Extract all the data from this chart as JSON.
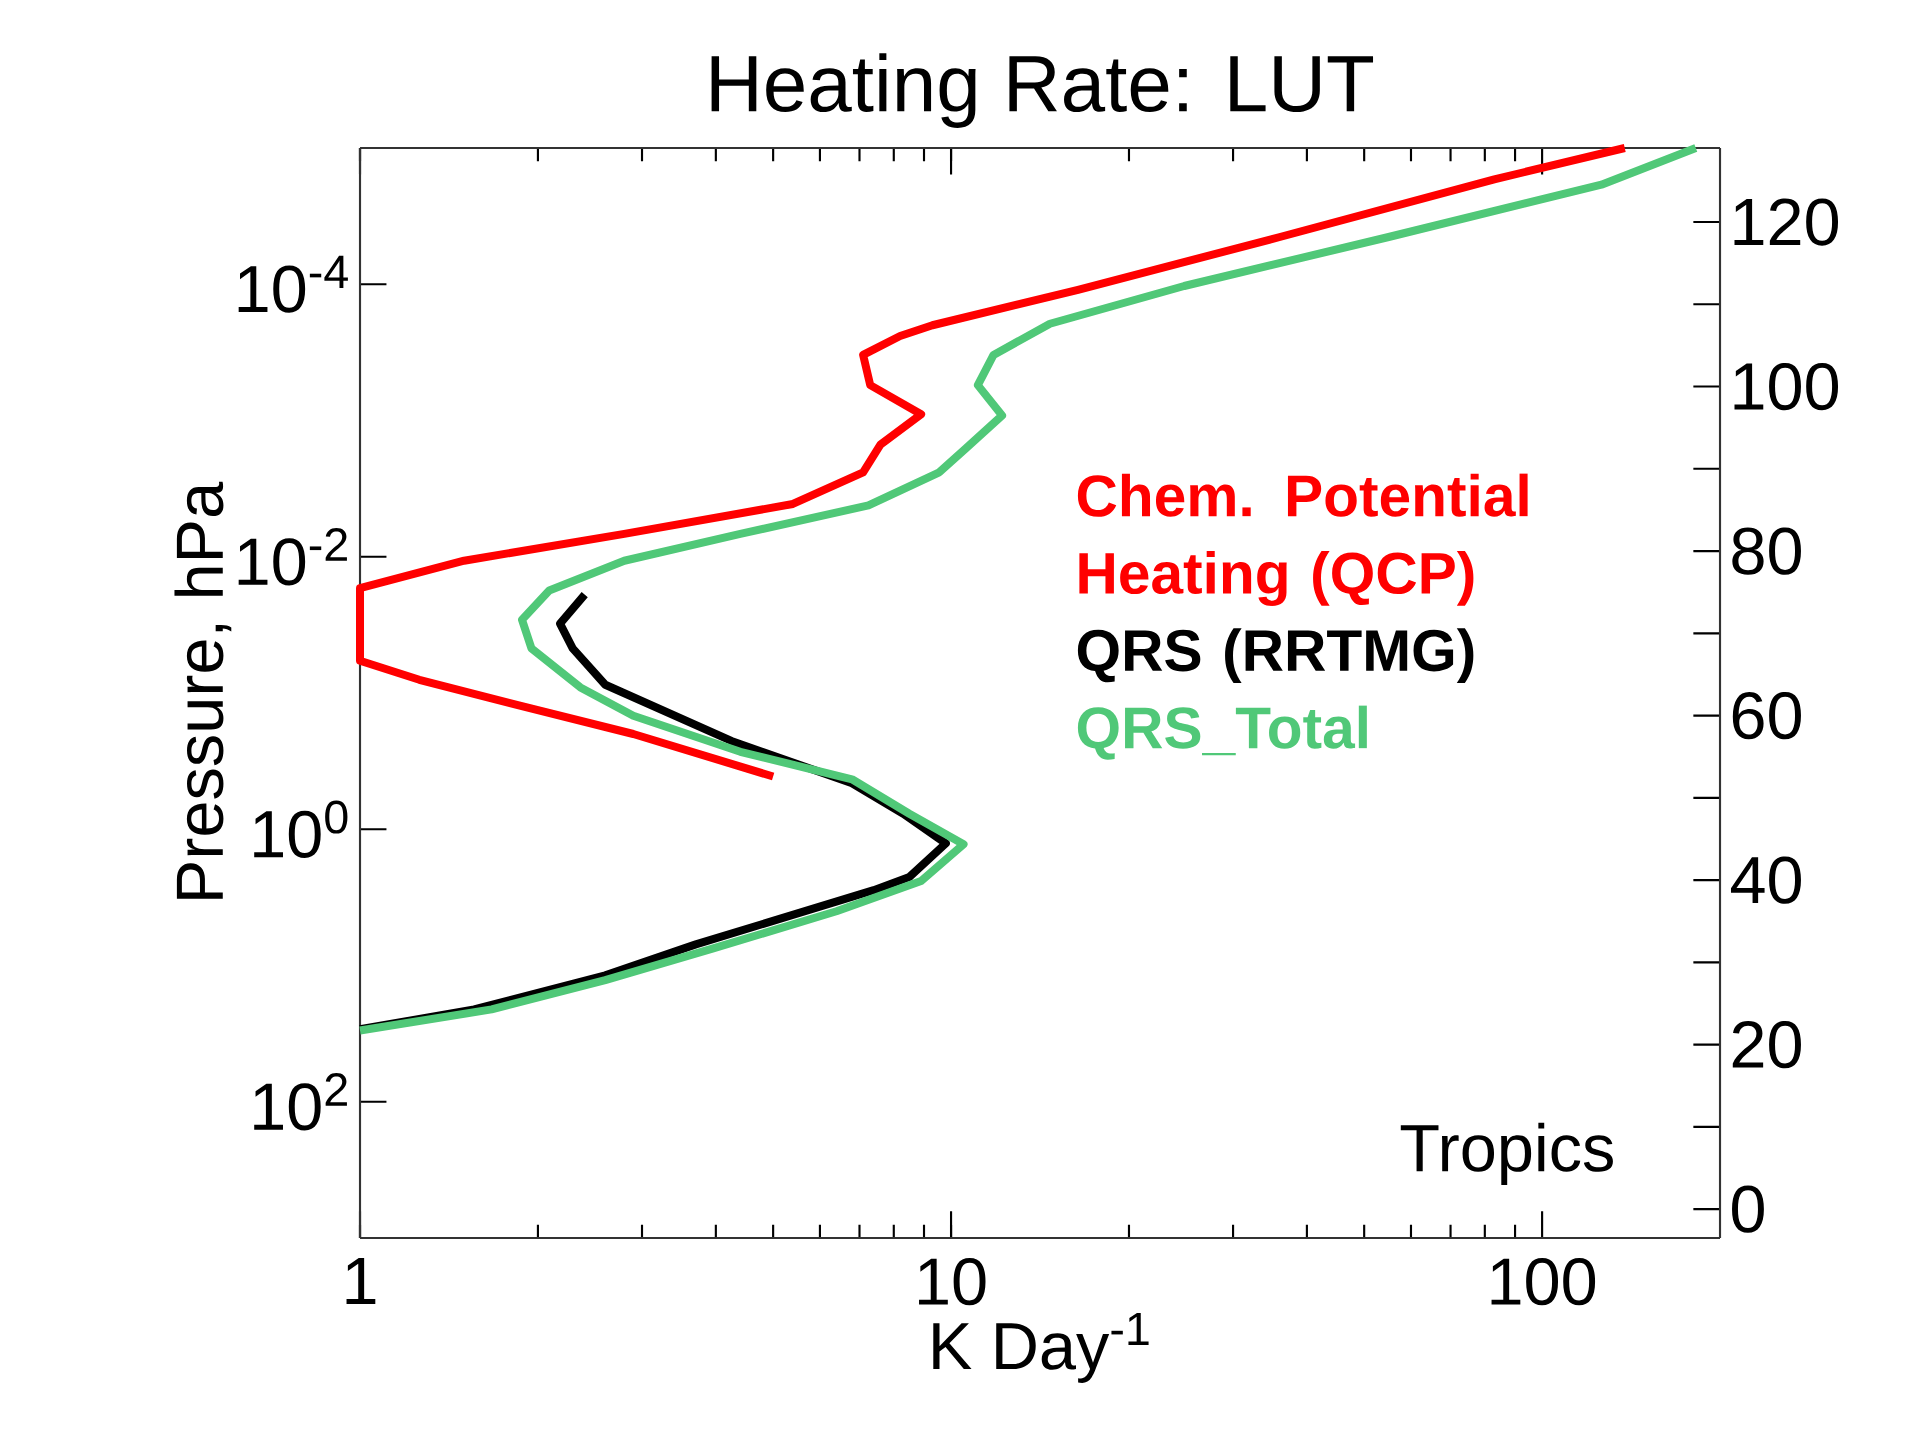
{
  "chart_data": {
    "type": "line",
    "title": "Heating Rate: LUT",
    "xlabel": "K Day$^{-1}$",
    "ylabel": "Pressure, hPa",
    "log": "xy",
    "xlim": [
      1,
      200
    ],
    "ylim": [
      1000,
      1e-05
    ],
    "xticks": [
      1,
      10,
      100
    ],
    "yticks": [
      {
        "value": 0.0001,
        "label": "10$^{-4}$"
      },
      {
        "value": 0.01,
        "label": "10$^{-2}$"
      },
      {
        "value": 1,
        "label": "10$^{0}$"
      },
      {
        "value": 100,
        "label": "10$^{2}$"
      }
    ],
    "y2lim": [
      -3.5,
      129
    ],
    "y2ticks": [
      0,
      20,
      40,
      60,
      80,
      100,
      120
    ],
    "marker": "none",
    "line_style": "solid",
    "legend": "right",
    "annotations": [
      "Tropics"
    ],
    "series": [
      {
        "name": "Chem. Potential Heating (QCP)",
        "color": "#ff0000",
        "x": [
          138,
          83,
          36,
          16.4,
          9.3,
          8.2,
          7.1,
          7.3,
          8.9,
          7.6,
          7.1,
          5.4,
          2.8,
          1.5,
          1.0,
          1.0,
          1.26,
          1.85,
          2.9,
          5.0
        ],
        "values": [
          1e-05,
          1.7e-05,
          4.5e-05,
          0.00011,
          0.0002,
          0.00024,
          0.00033,
          0.00055,
          0.0009,
          0.0015,
          0.0024,
          0.0041,
          0.0068,
          0.0107,
          0.017,
          0.058,
          0.08,
          0.123,
          0.2,
          0.41
        ]
      },
      {
        "name": "QRS (RRTMG)",
        "color": "#000000",
        "x": [
          2.4,
          2.18,
          2.29,
          2.6,
          4.25,
          6.8,
          8.3,
          9.8,
          8.5,
          7.4,
          3.7,
          2.6,
          1.56,
          1.0
        ],
        "values": [
          0.019,
          0.031,
          0.047,
          0.087,
          0.225,
          0.46,
          0.77,
          1.27,
          2.24,
          2.8,
          7.0,
          11.8,
          21,
          29.4
        ]
      },
      {
        "name": "QRS_Total",
        "color": "#50c878",
        "x": [
          182,
          126,
          55,
          24.8,
          14.7,
          11.8,
          11.1,
          12.2,
          10.6,
          9.55,
          7.25,
          4.4,
          2.8,
          2.09,
          1.88,
          1.95,
          2.36,
          2.9,
          4.4,
          6.8,
          8.5,
          10.5,
          8.9,
          6.4,
          3.96,
          2.6,
          1.67,
          1.0
        ],
        "values": [
          1e-05,
          1.86e-05,
          4.5e-05,
          0.000103,
          0.000195,
          0.00033,
          0.00055,
          0.00092,
          0.0016,
          0.0024,
          0.0042,
          0.0068,
          0.0107,
          0.0177,
          0.029,
          0.047,
          0.091,
          0.147,
          0.27,
          0.43,
          0.77,
          1.29,
          2.4,
          4.0,
          7.5,
          12.8,
          21,
          30
        ]
      }
    ]
  }
}
